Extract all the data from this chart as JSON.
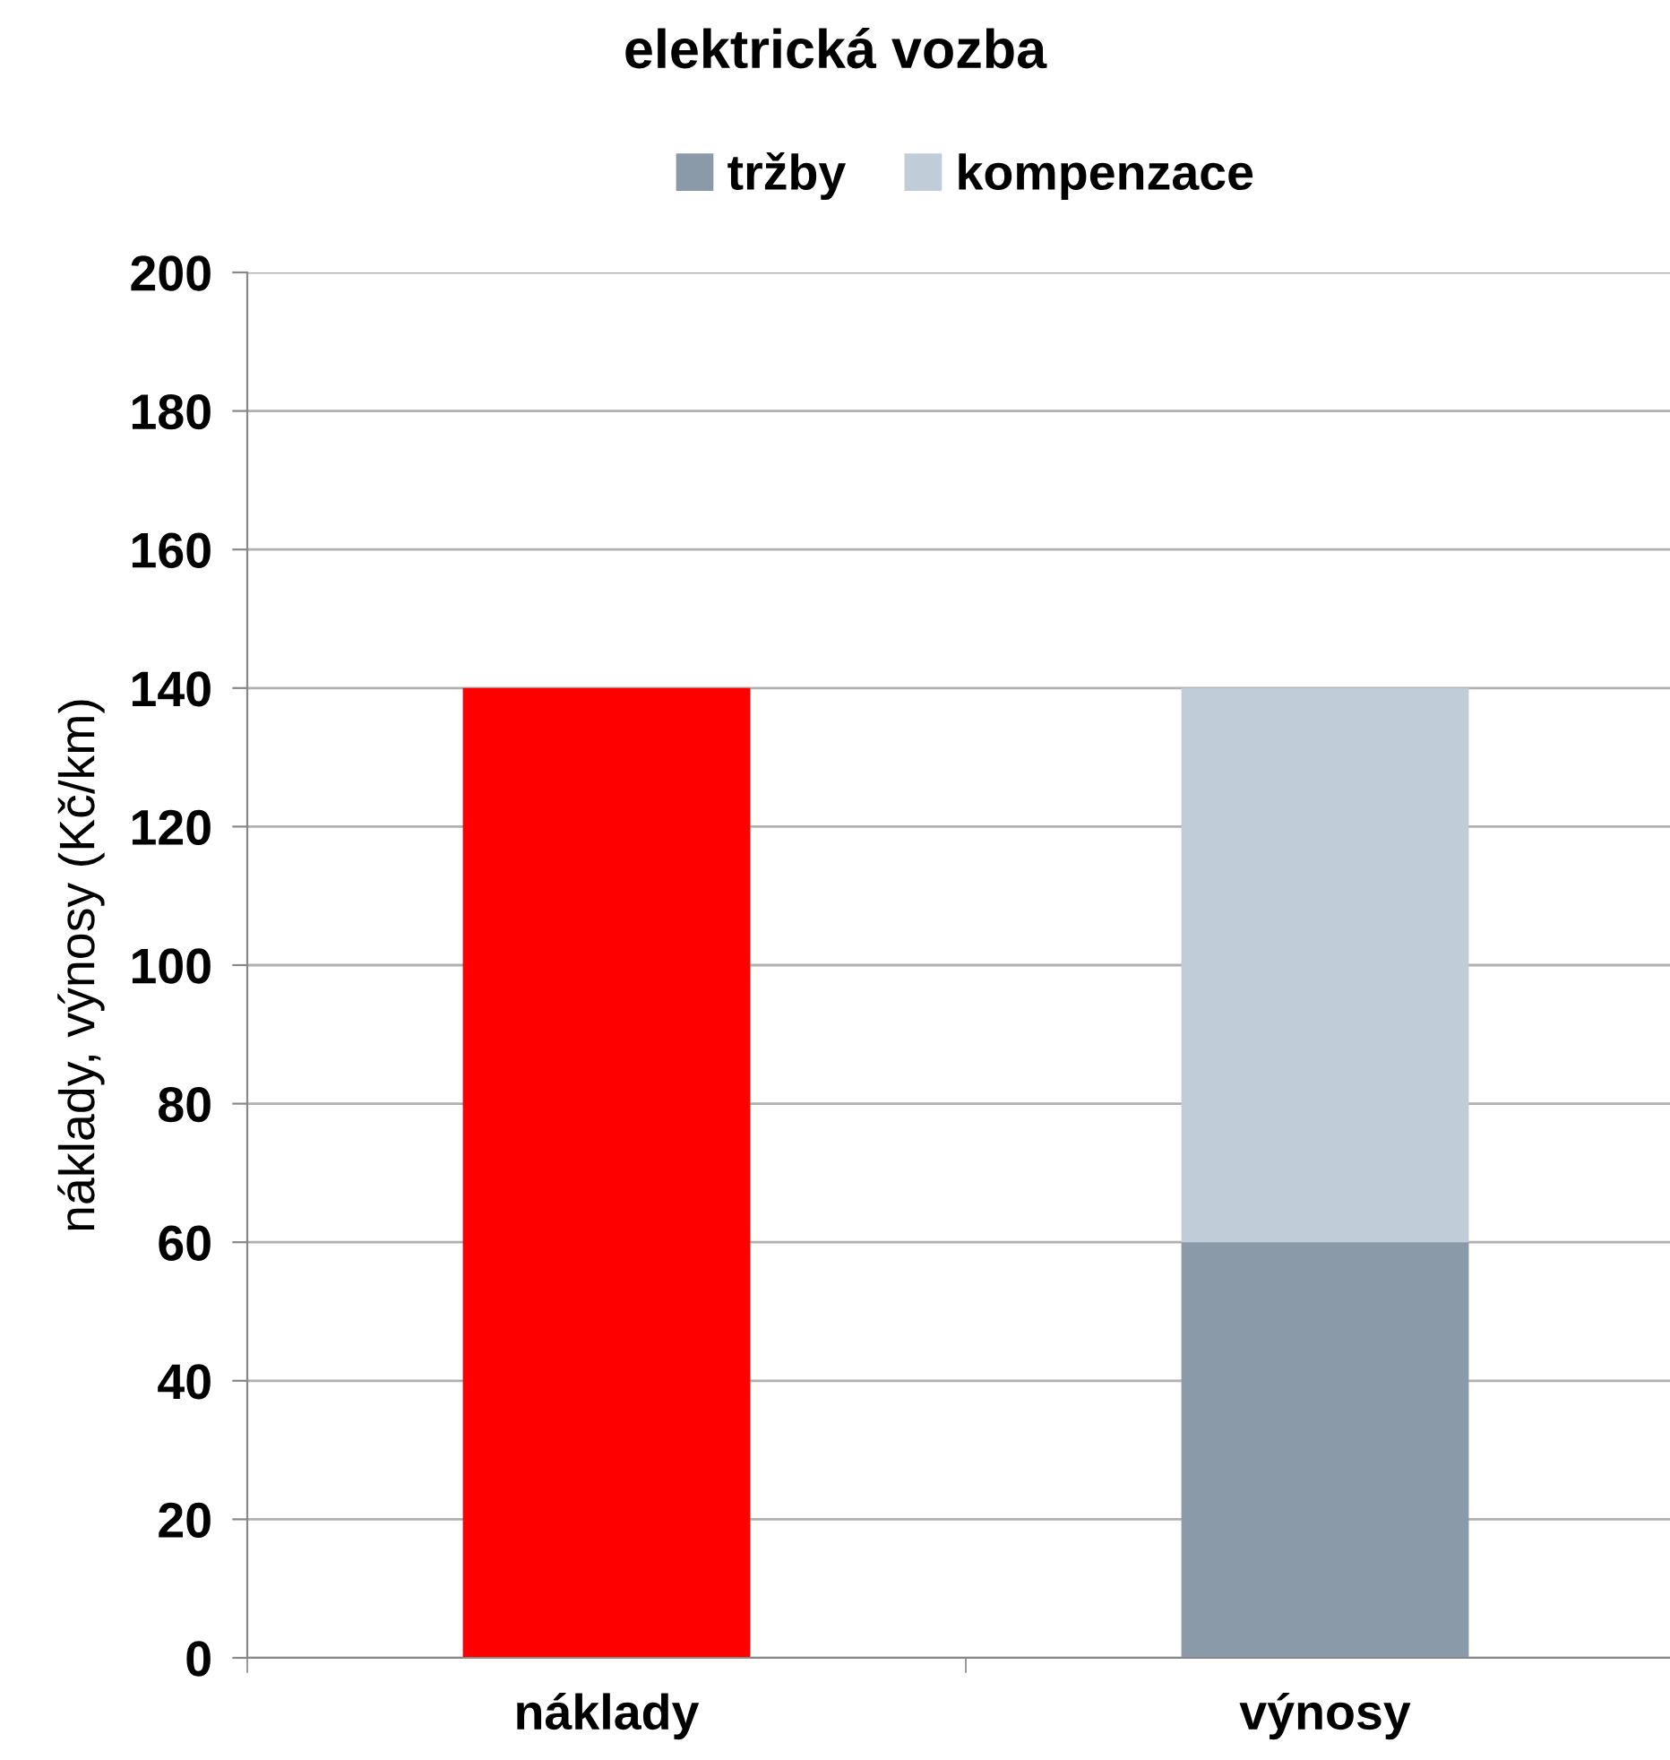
{
  "chart_data": {
    "type": "bar",
    "title": "elektrická vozba",
    "ylabel": "náklady, výnosy (Kč/km)",
    "categories": [
      "náklady",
      "výnosy"
    ],
    "stacked": true,
    "series": [
      {
        "name": "tržby",
        "color": "#8a9aa8",
        "colors": [
          "#ff0000",
          "#8a9aa8"
        ],
        "values": [
          140,
          60
        ]
      },
      {
        "name": "kompenzace",
        "color": "#c0cdd8",
        "values": [
          null,
          80
        ]
      }
    ],
    "ylim": [
      0,
      200
    ],
    "yticks": [
      0,
      20,
      40,
      60,
      80,
      100,
      120,
      140,
      160,
      180,
      200
    ],
    "grid": "y",
    "legend": "top"
  }
}
